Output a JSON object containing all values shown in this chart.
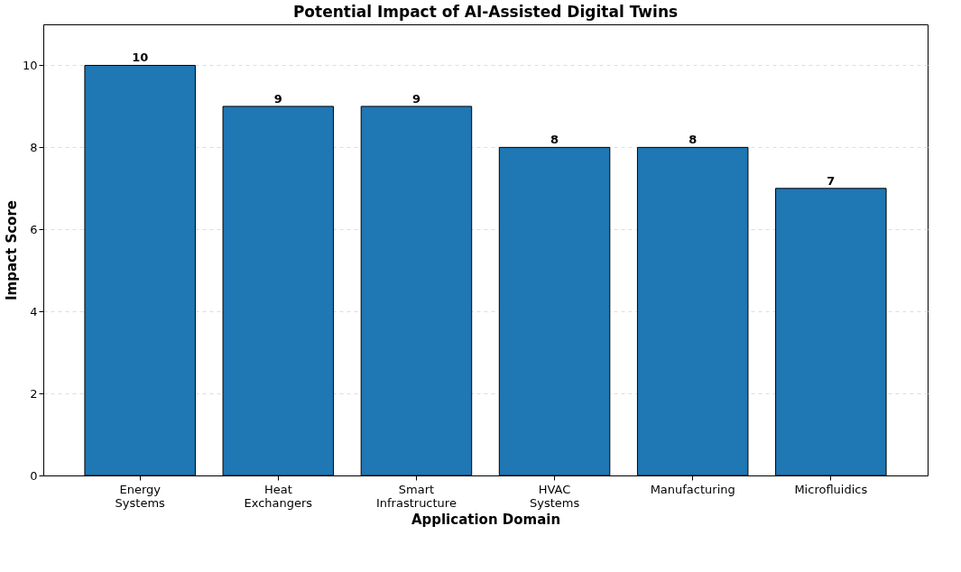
{
  "chart_data": {
    "type": "bar",
    "title": "Potential Impact of AI-Assisted Digital Twins",
    "xlabel": "Application Domain",
    "ylabel": "Impact Score",
    "categories": [
      "Energy Systems",
      "Heat Exchangers",
      "Smart Infrastructure",
      "HVAC Systems",
      "Manufacturing",
      "Microfluidics"
    ],
    "values": [
      10,
      9,
      9,
      8,
      8,
      7
    ],
    "color": "#1f77b4",
    "ylim": [
      0,
      11
    ],
    "yticks": [
      0,
      2,
      4,
      6,
      8,
      10
    ],
    "grid": "y",
    "data_labels": true
  }
}
